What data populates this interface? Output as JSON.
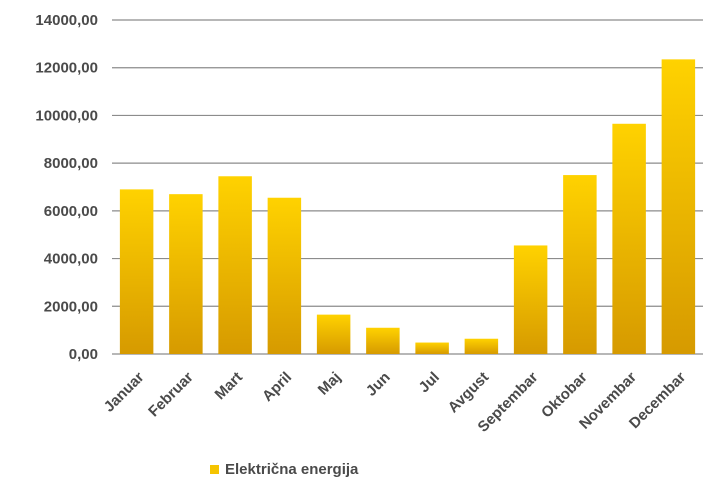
{
  "chart_data": {
    "type": "bar",
    "title": "",
    "xlabel": "",
    "ylabel": "",
    "categories": [
      "Januar",
      "Februar",
      "Mart",
      "April",
      "Maj",
      "Jun",
      "Jul",
      "Avgust",
      "Septembar",
      "Oktobar",
      "Novembar",
      "Decembar"
    ],
    "series": [
      {
        "name": "Električna energija",
        "values": [
          6900,
          6700,
          7450,
          6550,
          1650,
          1100,
          480,
          640,
          4550,
          7500,
          9650,
          12350
        ]
      }
    ],
    "ylim": [
      0,
      14000
    ],
    "yticks": [
      0,
      2000,
      4000,
      6000,
      8000,
      10000,
      12000,
      14000
    ],
    "ytick_labels": [
      "0,00",
      "2000,00",
      "4000,00",
      "6000,00",
      "8000,00",
      "10000,00",
      "12000,00",
      "14000,00"
    ],
    "grid": true,
    "legend_position": "bottom-left",
    "colors": {
      "bar_top": "#ffd200",
      "bar_bottom": "#d69a00",
      "legend_swatch": "#f5c400",
      "grid": "#8c8c8c",
      "text": "#4a4a4a"
    }
  }
}
